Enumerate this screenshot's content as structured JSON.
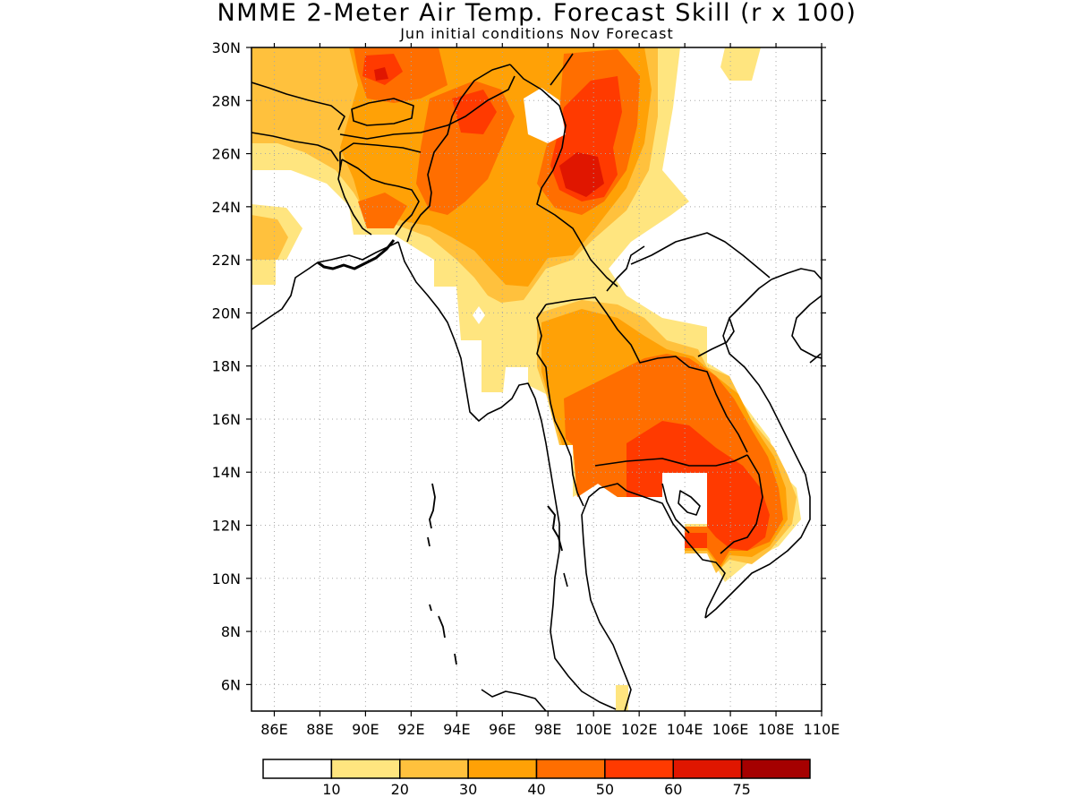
{
  "title": "NMME 2-Meter Air Temp. Forecast Skill (r x 100)",
  "subtitle": "Jun initial conditions  Nov Forecast",
  "map": {
    "lon_range": [
      85,
      110
    ],
    "lat_range": [
      5,
      30
    ],
    "lon_ticks": [
      "86E",
      "88E",
      "90E",
      "92E",
      "94E",
      "96E",
      "98E",
      "100E",
      "102E",
      "104E",
      "106E",
      "108E",
      "110E"
    ],
    "lat_ticks": [
      "6N",
      "8N",
      "10N",
      "12N",
      "14N",
      "16N",
      "18N",
      "20N",
      "22N",
      "24N",
      "26N",
      "28N",
      "30N"
    ],
    "grid": true
  },
  "colorbar": {
    "labels": [
      "10",
      "20",
      "30",
      "40",
      "50",
      "60",
      "75"
    ],
    "colors": [
      "#ffffff",
      "#ffe57f",
      "#ffc13d",
      "#ffa106",
      "#ff6e00",
      "#ff3a00",
      "#e01600",
      "#a50000"
    ]
  }
}
